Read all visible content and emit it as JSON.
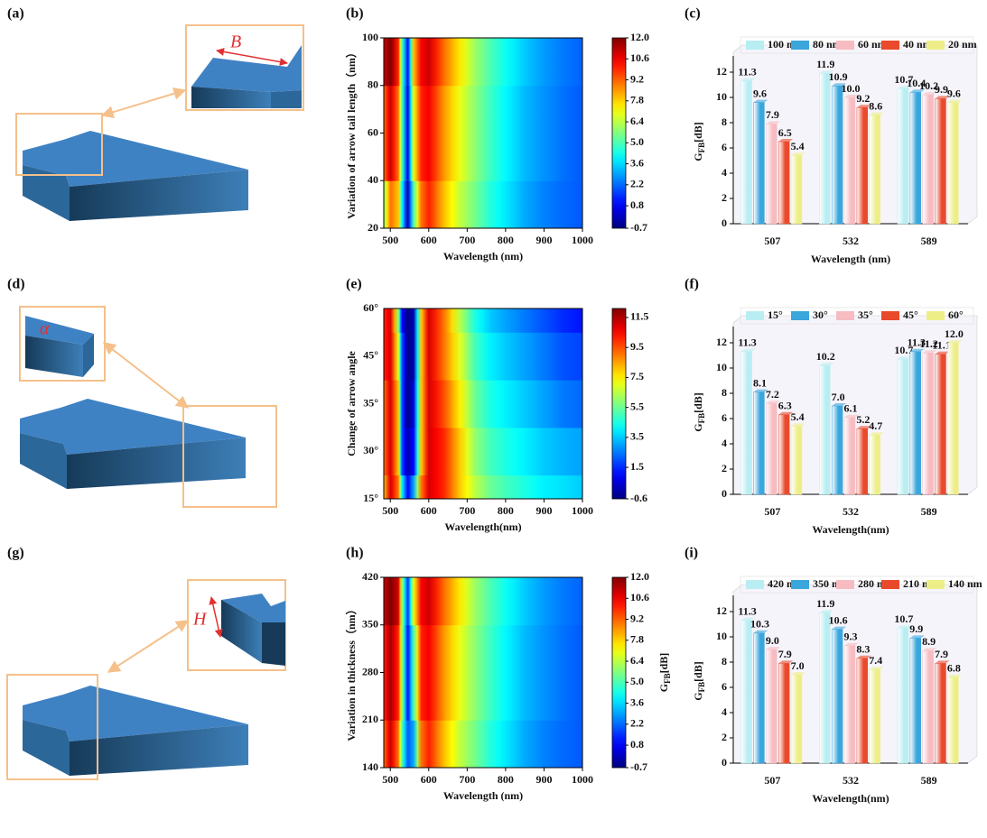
{
  "diagrams": [
    {
      "label": "(a)",
      "annotation": "B"
    },
    {
      "label": "(d)",
      "annotation": "α"
    },
    {
      "label": "(g)",
      "annotation": "H"
    }
  ],
  "chart_data": [
    {
      "type": "heatmap",
      "label": "(b)",
      "x_label": "Wavelength (nm)",
      "y_label": "Variation of arrow tail length（nm）",
      "colormap": "jet",
      "x": [
        483,
        500,
        520,
        530,
        545,
        560,
        580,
        600,
        640,
        680,
        720,
        760,
        800,
        850,
        900,
        950,
        1000
      ],
      "y": [
        20,
        60,
        100
      ],
      "z": [
        [
          6,
          9,
          8,
          4,
          0,
          5,
          9,
          10,
          8,
          6.5,
          5.5,
          4.5,
          3.8,
          3,
          2.5,
          2.2,
          2
        ],
        [
          9,
          11,
          9,
          5,
          0.5,
          7,
          10,
          10.5,
          8.5,
          7,
          5.8,
          4.8,
          4,
          3.2,
          2.7,
          2.3,
          2
        ],
        [
          11,
          12,
          10,
          5,
          1,
          8,
          10.5,
          11,
          9,
          7.5,
          6,
          5,
          4.2,
          3.4,
          2.8,
          2.4,
          2.1
        ]
      ],
      "xlim": [
        483,
        1000
      ],
      "xticks": [
        500,
        600,
        700,
        800,
        900,
        1000
      ],
      "ylim": [
        20,
        100
      ],
      "yticks": [
        20,
        40,
        60,
        80,
        100
      ],
      "zlim": [
        -0.7,
        12
      ],
      "colorbar_ticks": [
        {
          "value": 12,
          "label": "12.0"
        },
        10.6,
        9.2,
        7.8,
        6.4,
        {
          "value": 5,
          "label": "5.0"
        },
        3.6,
        2.2,
        0.8,
        -0.7
      ]
    },
    {
      "type": "bar",
      "label": "(c)",
      "x_label": "Wavelength (nm)",
      "y_label": {
        "main": "G",
        "sub": "FB",
        "unit": "[dB]"
      },
      "categories": [
        "507",
        "532",
        "589"
      ],
      "series": [
        {
          "name": "100 nm",
          "color": "#b8eef2",
          "values": [
            11.3,
            11.9,
            10.7
          ]
        },
        {
          "name": "80 nm",
          "color": "#3aa6dc",
          "values": [
            9.6,
            10.9,
            10.4
          ]
        },
        {
          "name": "60 nm",
          "color": "#f6bcc2",
          "values": [
            7.9,
            10.0,
            10.2
          ],
          "value_labels": [
            "7.9",
            "10.0",
            "10.2"
          ]
        },
        {
          "name": "40 nm",
          "color": "#ea4a2c",
          "values": [
            6.5,
            9.2,
            9.9
          ]
        },
        {
          "name": "20 nm",
          "color": "#eeee88",
          "values": [
            5.4,
            8.6,
            9.6
          ]
        }
      ],
      "ylim": [
        0,
        13
      ],
      "yticks": [
        0,
        2,
        4,
        6,
        8,
        10,
        12
      ]
    },
    {
      "type": "heatmap",
      "label": "(e)",
      "x_label": "Wavelength(nm)",
      "y_label": "Change of arrow angle",
      "colormap": "jet",
      "x": [
        483,
        500,
        520,
        530,
        545,
        560,
        580,
        600,
        640,
        680,
        720,
        760,
        800,
        850,
        900,
        950,
        1000
      ],
      "y": [
        "15°",
        "30°",
        "35°",
        "45°",
        "60°"
      ],
      "z": [
        [
          8,
          11,
          9,
          4,
          1,
          3,
          9,
          11,
          10,
          8,
          6.5,
          5.5,
          5,
          4.5,
          4,
          3.8,
          3.5
        ],
        [
          9,
          11,
          8,
          2,
          0,
          1,
          8,
          11,
          10,
          8,
          6,
          5,
          4.5,
          4,
          3.5,
          3.2,
          3
        ],
        [
          9,
          11,
          8,
          2,
          -0.5,
          0.5,
          8,
          11,
          9.5,
          7.5,
          5.5,
          4.5,
          4,
          3.5,
          3,
          2.5,
          2.3
        ],
        [
          10,
          11,
          7,
          2,
          -0.5,
          0,
          8,
          11,
          9,
          7,
          5,
          4,
          3.5,
          3,
          2.5,
          2,
          1.8
        ],
        [
          10,
          11,
          6,
          1,
          -0.5,
          0,
          8,
          11,
          9,
          6.5,
          4.5,
          3.5,
          3,
          2.5,
          2,
          1.5,
          1.2
        ]
      ],
      "xlim": [
        483,
        1000
      ],
      "xticks": [
        500,
        600,
        700,
        800,
        900,
        1000
      ],
      "zlim": [
        -0.6,
        12.1
      ],
      "colorbar_ticks": [
        11.5,
        9.5,
        7.5,
        5.5,
        3.5,
        1.5,
        -0.6
      ]
    },
    {
      "type": "bar",
      "label": "(f)",
      "x_label": "Wavelength(nm)",
      "y_label": {
        "main": "G",
        "sub": "FB",
        "unit": "[dB]"
      },
      "categories": [
        "507",
        "532",
        "589"
      ],
      "series": [
        {
          "name": "15°",
          "color": "#b8eef2",
          "values": [
            11.3,
            10.2,
            10.7
          ]
        },
        {
          "name": "30°",
          "color": "#3aa6dc",
          "values": [
            8.1,
            7.0,
            11.3
          ],
          "value_labels": [
            "8.1",
            "7.0",
            "11.3"
          ]
        },
        {
          "name": "35°",
          "color": "#f6bcc2",
          "values": [
            7.2,
            6.1,
            11.2
          ]
        },
        {
          "name": "45°",
          "color": "#ea4a2c",
          "values": [
            6.3,
            5.2,
            11.1
          ]
        },
        {
          "name": "60°",
          "color": "#eeee88",
          "values": [
            5.4,
            4.7,
            12.0
          ],
          "value_labels": [
            "5.4",
            "4.7",
            "12.0"
          ]
        }
      ],
      "ylim": [
        0,
        13
      ],
      "yticks": [
        0,
        2,
        4,
        6,
        8,
        10,
        12
      ]
    },
    {
      "type": "heatmap",
      "label": "(h)",
      "x_label": "Wavelength (nm)",
      "y_label": "Variation in thickness（nm）",
      "colormap": "jet",
      "colorbar_label": {
        "main": "G",
        "sub": "FB",
        "unit": "[dB]"
      },
      "x": [
        483,
        500,
        520,
        530,
        545,
        560,
        580,
        600,
        640,
        680,
        720,
        760,
        800,
        850,
        900,
        950,
        1000
      ],
      "y": [
        140,
        280,
        420
      ],
      "z": [
        [
          9,
          11,
          9,
          5,
          2,
          3,
          9,
          10,
          8,
          6.5,
          5.5,
          4.5,
          3.8,
          3,
          2.5,
          2.2,
          2
        ],
        [
          10,
          11.5,
          10,
          6,
          1,
          5,
          10,
          10.5,
          8.5,
          7,
          5.8,
          4.8,
          4,
          3.2,
          2.7,
          2.3,
          2
        ],
        [
          11,
          12,
          11,
          6,
          1.5,
          7,
          10.5,
          11,
          9,
          7.5,
          6,
          5,
          4.2,
          3.4,
          2.8,
          2.4,
          2.1
        ]
      ],
      "xlim": [
        483,
        1000
      ],
      "xticks": [
        500,
        600,
        700,
        800,
        900,
        1000
      ],
      "ylim": [
        140,
        420
      ],
      "yticks": [
        140,
        210,
        280,
        350,
        420
      ],
      "zlim": [
        -0.7,
        12
      ],
      "colorbar_ticks": [
        {
          "value": 12,
          "label": "12.0"
        },
        10.6,
        9.2,
        7.8,
        6.4,
        {
          "value": 5,
          "label": "5.0"
        },
        3.6,
        2.2,
        0.8,
        -0.7
      ]
    },
    {
      "type": "bar",
      "label": "(i)",
      "x_label": "Wavelength(nm)",
      "y_label": {
        "main": "G",
        "sub": "FB",
        "unit": "[dB]"
      },
      "categories": [
        "507",
        "532",
        "589"
      ],
      "series": [
        {
          "name": "420 nm",
          "color": "#b8eef2",
          "values": [
            11.3,
            11.9,
            10.7
          ]
        },
        {
          "name": "350 nm",
          "color": "#3aa6dc",
          "values": [
            10.3,
            10.6,
            9.9
          ]
        },
        {
          "name": "280 nm",
          "color": "#f6bcc2",
          "values": [
            9.0,
            9.3,
            8.9
          ],
          "value_labels": [
            "9.0",
            "9.3",
            "8.9"
          ]
        },
        {
          "name": "210 nm",
          "color": "#ea4a2c",
          "values": [
            7.9,
            8.3,
            7.9
          ]
        },
        {
          "name": "140 nm",
          "color": "#eeee88",
          "values": [
            7.0,
            7.4,
            6.8
          ],
          "value_labels": [
            "7.0",
            "7.4",
            "6.8"
          ]
        }
      ],
      "ylim": [
        0,
        13
      ],
      "yticks": [
        0,
        2,
        4,
        6,
        8,
        10,
        12
      ]
    }
  ]
}
